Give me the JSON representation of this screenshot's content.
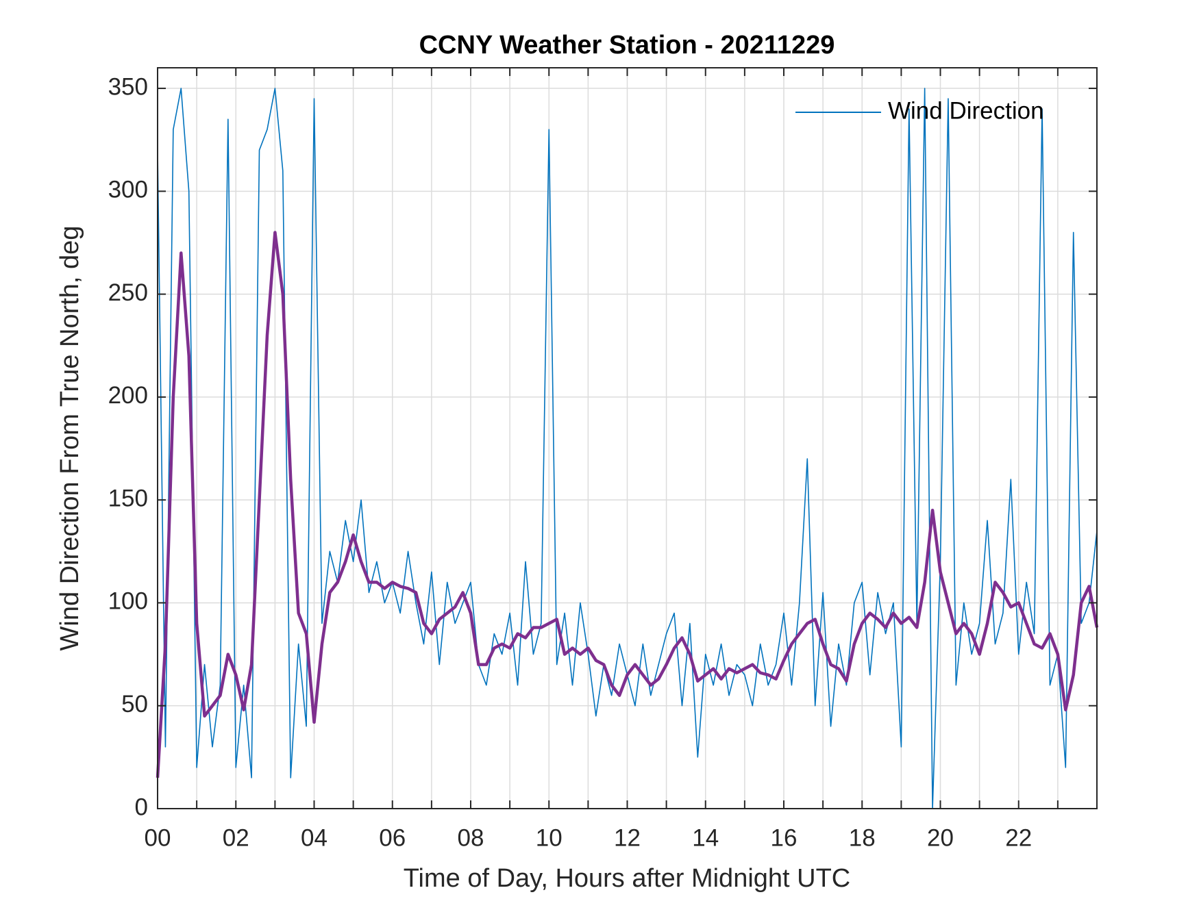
{
  "chart_data": {
    "type": "line",
    "title": "CCNY Weather Station - 20211229",
    "xlabel": "Time of Day, Hours after Midnight UTC",
    "ylabel": "Wind Direction From True North, deg",
    "xlim": [
      0,
      24
    ],
    "ylim": [
      0,
      360
    ],
    "xticks": [
      {
        "value": 0,
        "label": "00"
      },
      {
        "value": 2,
        "label": "02"
      },
      {
        "value": 4,
        "label": "04"
      },
      {
        "value": 6,
        "label": "06"
      },
      {
        "value": 8,
        "label": "08"
      },
      10,
      12,
      14,
      16,
      18,
      20,
      22
    ],
    "x_minor_ticks": [
      1,
      3,
      5,
      7,
      9,
      11,
      13,
      15,
      17,
      19,
      21,
      23
    ],
    "yticks": [
      0,
      50,
      100,
      150,
      200,
      250,
      300,
      350
    ],
    "grid": true,
    "legend": "northeast",
    "x": [
      0,
      0.2,
      0.4,
      0.6,
      0.8,
      1,
      1.2,
      1.4,
      1.6,
      1.8,
      2,
      2.2,
      2.4,
      2.6,
      2.8,
      3,
      3.2,
      3.4,
      3.6,
      3.8,
      4,
      4.2,
      4.4,
      4.6,
      4.8,
      5,
      5.2,
      5.4,
      5.6,
      5.8,
      6,
      6.2,
      6.4,
      6.6,
      6.8,
      7,
      7.2,
      7.4,
      7.6,
      7.8,
      8,
      8.2,
      8.4,
      8.6,
      8.8,
      9,
      9.2,
      9.4,
      9.6,
      9.8,
      10,
      10.2,
      10.4,
      10.6,
      10.8,
      11,
      11.2,
      11.4,
      11.6,
      11.8,
      12,
      12.2,
      12.4,
      12.6,
      12.8,
      13,
      13.2,
      13.4,
      13.6,
      13.8,
      14,
      14.2,
      14.4,
      14.6,
      14.8,
      15,
      15.2,
      15.4,
      15.6,
      15.8,
      16,
      16.2,
      16.4,
      16.6,
      16.8,
      17,
      17.2,
      17.4,
      17.6,
      17.8,
      18,
      18.2,
      18.4,
      18.6,
      18.8,
      19,
      19.2,
      19.4,
      19.6,
      19.8,
      20,
      20.2,
      20.4,
      20.6,
      20.8,
      21,
      21.2,
      21.4,
      21.6,
      21.8,
      22,
      22.2,
      22.4,
      22.6,
      22.8,
      23,
      23.2,
      23.4,
      23.6,
      23.8,
      24
    ],
    "series": [
      {
        "name": "Wind Direction",
        "color": "#0072BD",
        "width": 1.6,
        "values": [
          320,
          30,
          330,
          350,
          300,
          20,
          70,
          30,
          60,
          335,
          20,
          60,
          15,
          320,
          330,
          350,
          310,
          15,
          80,
          40,
          345,
          90,
          125,
          110,
          140,
          120,
          150,
          105,
          120,
          100,
          110,
          95,
          125,
          100,
          80,
          115,
          70,
          110,
          90,
          100,
          110,
          70,
          60,
          85,
          75,
          95,
          60,
          120,
          75,
          90,
          330,
          70,
          95,
          60,
          100,
          75,
          45,
          70,
          55,
          80,
          65,
          50,
          80,
          55,
          70,
          85,
          95,
          50,
          90,
          25,
          75,
          60,
          80,
          55,
          70,
          65,
          50,
          80,
          60,
          70,
          95,
          60,
          100,
          170,
          50,
          105,
          40,
          80,
          60,
          100,
          110,
          65,
          105,
          85,
          100,
          30,
          340,
          90,
          350,
          0,
          120,
          345,
          60,
          100,
          75,
          90,
          140,
          80,
          95,
          160,
          75,
          110,
          85,
          340,
          60,
          75,
          20,
          280,
          90,
          100,
          135
        ]
      },
      {
        "color": "#7E2F8E",
        "width": 4.5,
        "values": [
          15,
          80,
          200,
          270,
          220,
          90,
          45,
          50,
          55,
          75,
          65,
          48,
          70,
          150,
          230,
          280,
          250,
          160,
          95,
          85,
          42,
          80,
          105,
          110,
          120,
          133,
          120,
          110,
          110,
          107,
          110,
          108,
          107,
          105,
          90,
          85,
          92,
          95,
          98,
          105,
          95,
          70,
          70,
          78,
          80,
          78,
          85,
          83,
          88,
          88,
          90,
          92,
          75,
          78,
          75,
          78,
          72,
          70,
          60,
          55,
          65,
          70,
          65,
          60,
          63,
          70,
          78,
          83,
          75,
          62,
          65,
          68,
          63,
          68,
          66,
          68,
          70,
          66,
          65,
          63,
          72,
          80,
          85,
          90,
          92,
          80,
          70,
          68,
          62,
          80,
          90,
          95,
          92,
          88,
          95,
          90,
          93,
          88,
          110,
          145,
          115,
          100,
          85,
          90,
          85,
          75,
          90,
          110,
          105,
          98,
          100,
          90,
          80,
          78,
          85,
          75,
          48,
          65,
          100,
          108,
          88
        ]
      }
    ]
  }
}
